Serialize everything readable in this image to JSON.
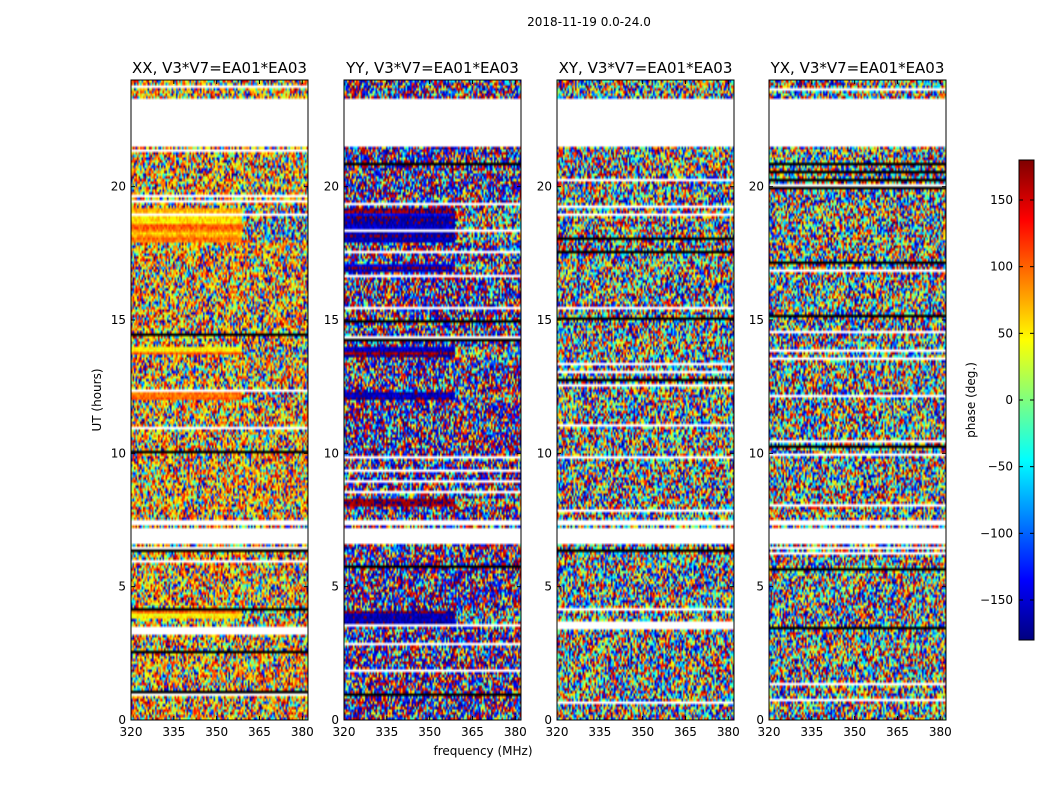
{
  "chart_data": {
    "type": "heatmap",
    "suptitle": "2018-11-19 0.0-24.0",
    "xlabel": "frequency (MHz)",
    "ylabel": "UT (hours)",
    "xlim": [
      320,
      382
    ],
    "ylim": [
      0,
      24
    ],
    "xticks": [
      320,
      335,
      350,
      365,
      380
    ],
    "yticks": [
      0,
      5,
      10,
      15,
      20
    ],
    "colorbar": {
      "label": "phase (deg.)",
      "range": [
        -180,
        180
      ],
      "ticks": [
        150,
        100,
        50,
        0,
        -50,
        -100,
        -150
      ],
      "colormap": [
        "#00007f",
        "#0000ff",
        "#007fff",
        "#00ffff",
        "#7fff7f",
        "#ffff00",
        "#ff7f00",
        "#ff0000",
        "#7f0000"
      ]
    },
    "panels": [
      {
        "title": "XX, V3*V7=EA01*EA03",
        "base_phase": 75,
        "spread": 0.45,
        "coherent_bands": [
          [
            17.9,
            19.2
          ],
          [
            12.0,
            12.3
          ],
          [
            3.8,
            4.1
          ],
          [
            13.7,
            14.0
          ]
        ]
      },
      {
        "title": "YY, V3*V7=EA01*EA03",
        "base_phase": -165,
        "spread": 0.5,
        "coherent_bands": [
          [
            17.9,
            19.2
          ],
          [
            12.0,
            12.3
          ],
          [
            3.6,
            4.1
          ],
          [
            8.0,
            8.3
          ],
          [
            13.6,
            14.0
          ],
          [
            16.8,
            17.1
          ]
        ]
      },
      {
        "title": "XY, V3*V7=EA01*EA03",
        "base_phase": 0,
        "spread": 1.0,
        "coherent_bands": []
      },
      {
        "title": "YX, V3*V7=EA01*EA03",
        "base_phase": 0,
        "spread": 1.0,
        "coherent_bands": []
      }
    ],
    "flagged_gaps_ut": [
      [
        6.6,
        7.2
      ],
      [
        7.35,
        7.55
      ],
      [
        21.5,
        22.95
      ],
      [
        23.05,
        23.3
      ]
    ]
  }
}
